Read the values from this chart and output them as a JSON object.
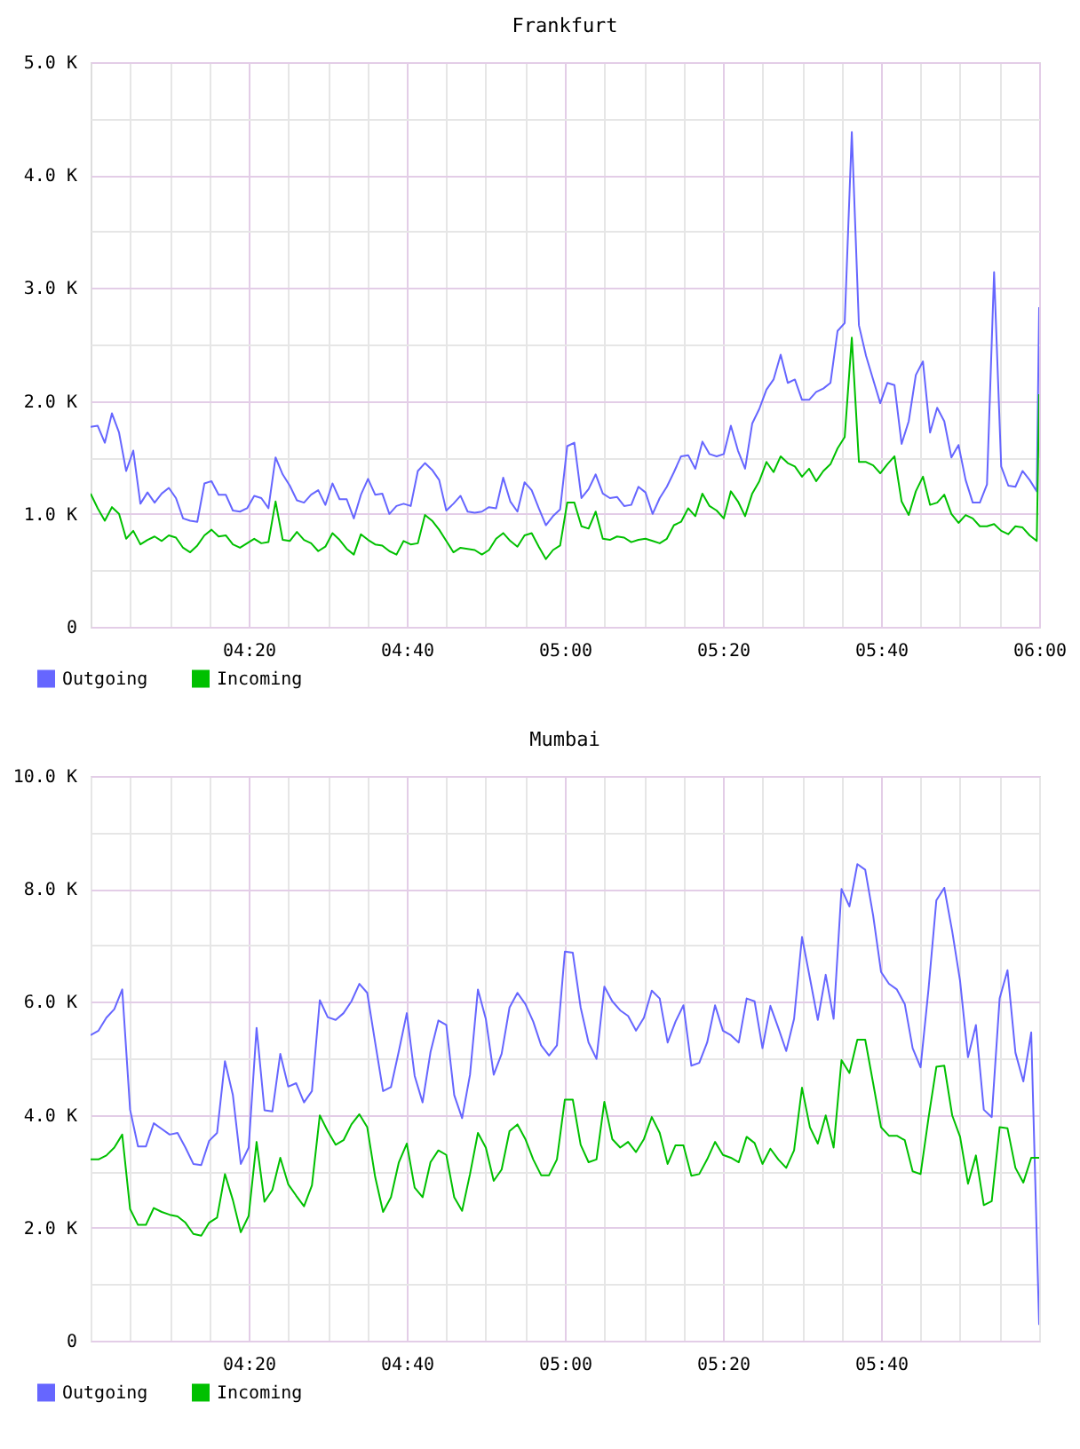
{
  "chart_data": [
    {
      "type": "line",
      "title": "Frankfurt",
      "x": [
        4.0,
        4.015,
        4.03,
        4.045,
        4.06,
        4.075,
        4.09,
        4.105,
        4.12,
        4.135,
        4.15,
        4.165,
        4.18,
        4.195,
        4.21,
        4.225,
        4.24,
        4.255,
        4.27,
        4.285,
        4.3,
        4.315,
        4.33,
        4.345,
        4.36,
        4.375,
        4.39,
        4.405,
        4.42,
        4.435,
        4.45,
        4.465,
        4.48,
        4.495,
        4.51,
        4.525,
        4.54,
        4.555,
        4.57,
        4.585,
        4.6,
        4.615,
        4.63,
        4.645,
        4.66,
        4.675,
        4.69,
        4.705,
        4.72,
        4.735,
        4.75,
        4.765,
        4.78,
        4.795,
        4.81,
        4.825,
        4.84,
        4.855,
        4.87,
        4.885,
        4.9,
        4.915,
        4.93,
        4.945,
        4.96,
        4.975,
        4.99,
        5.005,
        5.02,
        5.035,
        5.05,
        5.065,
        5.08,
        5.095,
        5.11,
        5.125,
        5.14,
        5.155,
        5.17,
        5.185,
        5.2,
        5.215,
        5.23,
        5.245,
        5.26,
        5.275,
        5.29,
        5.305,
        5.32,
        5.335,
        5.35,
        5.365,
        5.38,
        5.395,
        5.41,
        5.425,
        5.44,
        5.455,
        5.47,
        5.485,
        5.5,
        5.515,
        5.53,
        5.545,
        5.56,
        5.575,
        5.59,
        5.605,
        5.62,
        5.635,
        5.65,
        5.665,
        5.68,
        5.695,
        5.71,
        5.725,
        5.74,
        5.755,
        5.77,
        5.785,
        5.8,
        5.815,
        5.83,
        5.845,
        5.86,
        5.875,
        5.89,
        5.905,
        5.92,
        5.935,
        5.95,
        5.965,
        5.98,
        5.995,
        6.0
      ],
      "series": [
        {
          "name": "Outgoing",
          "color": "#6666ff",
          "values": [
            1770,
            1780,
            1630,
            1890,
            1720,
            1380,
            1560,
            1090,
            1190,
            1100,
            1180,
            1230,
            1140,
            960,
            940,
            930,
            1270,
            1290,
            1170,
            1170,
            1030,
            1020,
            1050,
            1160,
            1140,
            1050,
            1500,
            1350,
            1250,
            1120,
            1100,
            1170,
            1210,
            1080,
            1270,
            1130,
            1130,
            960,
            1170,
            1310,
            1170,
            1180,
            1000,
            1070,
            1090,
            1070,
            1380,
            1450,
            1390,
            1300,
            1030,
            1090,
            1160,
            1020,
            1010,
            1020,
            1060,
            1050,
            1320,
            1110,
            1020,
            1280,
            1210,
            1050,
            900,
            980,
            1040,
            1600,
            1630,
            1140,
            1220,
            1350,
            1180,
            1140,
            1150,
            1070,
            1080,
            1240,
            1190,
            1000,
            1140,
            1240,
            1370,
            1510,
            1520,
            1400,
            1640,
            1530,
            1510,
            1530,
            1780,
            1560,
            1400,
            1800,
            1930,
            2100,
            2190,
            2410,
            2160,
            2190,
            2010,
            2010,
            2080,
            2110,
            2160,
            2620,
            2690,
            4380,
            2670,
            2400,
            2190,
            1980,
            2160,
            2140,
            1620,
            1820,
            2230,
            2350,
            1720,
            1940,
            1820,
            1500,
            1610,
            1300,
            1100,
            1100,
            1260,
            3140,
            1420,
            1250,
            1240,
            1380,
            1300,
            1200,
            2830
          ]
        },
        {
          "name": "Incoming",
          "color": "#00c000",
          "values": [
            1180,
            1050,
            940,
            1060,
            1000,
            780,
            850,
            730,
            770,
            800,
            760,
            810,
            790,
            700,
            660,
            720,
            810,
            860,
            800,
            810,
            730,
            700,
            740,
            780,
            740,
            750,
            1110,
            770,
            760,
            840,
            770,
            740,
            670,
            710,
            830,
            770,
            690,
            640,
            820,
            770,
            730,
            720,
            670,
            640,
            760,
            730,
            740,
            990,
            940,
            860,
            760,
            660,
            700,
            690,
            680,
            640,
            680,
            780,
            830,
            760,
            710,
            810,
            830,
            710,
            600,
            680,
            720,
            1100,
            1100,
            890,
            870,
            1020,
            780,
            770,
            800,
            790,
            750,
            770,
            780,
            760,
            740,
            780,
            900,
            930,
            1050,
            980,
            1180,
            1070,
            1030,
            960,
            1200,
            1110,
            980,
            1180,
            1290,
            1460,
            1370,
            1510,
            1450,
            1420,
            1330,
            1400,
            1290,
            1380,
            1440,
            1580,
            1680,
            2560,
            1460,
            1460,
            1430,
            1360,
            1440,
            1510,
            1110,
            990,
            1200,
            1330,
            1080,
            1100,
            1170,
            1000,
            920,
            990,
            960,
            890,
            890,
            910,
            850,
            820,
            890,
            880,
            810,
            760,
            2060
          ]
        }
      ],
      "xlim": [
        4.0,
        6.0
      ],
      "xticks": [
        {
          "value": 4.0833,
          "label": null
        },
        {
          "value": 4.1667,
          "label": null
        },
        {
          "value": 4.25,
          "label": null
        },
        {
          "value": 4.3333,
          "label": "04:20"
        },
        {
          "value": 4.4167,
          "label": null
        },
        {
          "value": 4.5,
          "label": null
        },
        {
          "value": 4.5833,
          "label": null
        },
        {
          "value": 4.6667,
          "label": "04:40"
        },
        {
          "value": 4.75,
          "label": null
        },
        {
          "value": 4.8333,
          "label": null
        },
        {
          "value": 4.9167,
          "label": null
        },
        {
          "value": 5.0,
          "label": "05:00"
        },
        {
          "value": 5.0833,
          "label": null
        },
        {
          "value": 5.1667,
          "label": null
        },
        {
          "value": 5.25,
          "label": null
        },
        {
          "value": 5.3333,
          "label": "05:20"
        },
        {
          "value": 5.4167,
          "label": null
        },
        {
          "value": 5.5,
          "label": null
        },
        {
          "value": 5.5833,
          "label": null
        },
        {
          "value": 5.6667,
          "label": "05:40"
        },
        {
          "value": 5.75,
          "label": null
        },
        {
          "value": 5.8333,
          "label": null
        },
        {
          "value": 5.9167,
          "label": null
        },
        {
          "value": 6.0,
          "label": "06:00"
        }
      ],
      "ylim": [
        0,
        5000
      ],
      "yticks": [
        0,
        {
          "value": 500,
          "label": null
        },
        {
          "value": 1000,
          "label": "1.0 K"
        },
        {
          "value": 1500,
          "label": null
        },
        {
          "value": 2000,
          "label": "2.0 K"
        },
        {
          "value": 2500,
          "label": null
        },
        {
          "value": 3000,
          "label": "3.0 K"
        },
        {
          "value": 3500,
          "label": null
        },
        {
          "value": 4000,
          "label": "4.0 K"
        },
        {
          "value": 4500,
          "label": null
        },
        {
          "value": 5000,
          "label": "5.0 K"
        }
      ],
      "grid": true,
      "legend": "bottom left"
    },
    {
      "type": "line",
      "title": "Mumbai",
      "x": [
        4.0,
        4.0167,
        4.0333,
        4.05,
        4.0667,
        4.0833,
        4.1,
        4.1167,
        4.1333,
        4.15,
        4.1667,
        4.1833,
        4.2,
        4.2167,
        4.2333,
        4.25,
        4.2667,
        4.2833,
        4.3,
        4.3167,
        4.3333,
        4.35,
        4.3667,
        4.3833,
        4.4,
        4.4167,
        4.4333,
        4.45,
        4.4667,
        4.4833,
        4.5,
        4.5167,
        4.5333,
        4.55,
        4.5667,
        4.5833,
        4.6,
        4.6167,
        4.6333,
        4.65,
        4.6667,
        4.6833,
        4.7,
        4.7167,
        4.7333,
        4.75,
        4.7667,
        4.7833,
        4.8,
        4.8167,
        4.8333,
        4.85,
        4.8667,
        4.8833,
        4.9,
        4.9167,
        4.9333,
        4.95,
        4.9667,
        4.9833,
        5.0,
        5.0167,
        5.0333,
        5.05,
        5.0667,
        5.0833,
        5.1,
        5.1167,
        5.1333,
        5.15,
        5.1667,
        5.1833,
        5.2,
        5.2167,
        5.2333,
        5.25,
        5.2667,
        5.2833,
        5.3,
        5.3167,
        5.3333,
        5.35,
        5.3667,
        5.3833,
        5.4,
        5.4167,
        5.4333,
        5.45,
        5.4667,
        5.4833,
        5.5,
        5.5167,
        5.5333,
        5.55,
        5.5667,
        5.5833,
        5.6,
        5.6167,
        5.6333,
        5.65,
        5.6667,
        5.6833,
        5.7,
        5.7167,
        5.7333,
        5.75,
        5.7667,
        5.7833,
        5.8,
        5.8167,
        5.8333,
        5.85,
        5.8667,
        5.8833,
        5.9,
        5.9167,
        5.9333,
        5.95,
        5.9667,
        5.9833,
        6.0
      ],
      "series": [
        {
          "name": "Outgoing",
          "color": "#6666ff",
          "values": [
            5410,
            5490,
            5720,
            5870,
            6220,
            4090,
            3440,
            3440,
            3850,
            3750,
            3650,
            3680,
            3420,
            3130,
            3110,
            3540,
            3680,
            4950,
            4350,
            3130,
            3420,
            5540,
            4080,
            4060,
            5080,
            4500,
            4560,
            4220,
            4420,
            6030,
            5730,
            5680,
            5800,
            6010,
            6320,
            6160,
            5280,
            4420,
            4490,
            5130,
            5800,
            4690,
            4220,
            5110,
            5670,
            5590,
            4350,
            3940,
            4710,
            6220,
            5700,
            4710,
            5080,
            5900,
            6160,
            5960,
            5650,
            5230,
            5050,
            5230,
            6890,
            6870,
            5900,
            5280,
            4990,
            6270,
            6010,
            5850,
            5750,
            5490,
            5720,
            6200,
            6060,
            5280,
            5650,
            5940,
            4870,
            4920,
            5280,
            5940,
            5490,
            5410,
            5280,
            6060,
            6010,
            5180,
            5930,
            5540,
            5130,
            5700,
            7150,
            6420,
            5680,
            6480,
            5700,
            8000,
            7690,
            8440,
            8340,
            7530,
            6530,
            6320,
            6220,
            5960,
            5180,
            4840,
            6220,
            7800,
            8020,
            7250,
            6370,
            5020,
            5590,
            4090,
            3960,
            6060,
            6560,
            5100,
            4590,
            5460,
            280
          ]
        },
        {
          "name": "Incoming",
          "color": "#00c000",
          "values": [
            3210,
            3210,
            3280,
            3420,
            3650,
            2330,
            2050,
            2050,
            2350,
            2280,
            2230,
            2200,
            2090,
            1890,
            1860,
            2090,
            2180,
            2950,
            2490,
            1920,
            2210,
            3520,
            2460,
            2670,
            3240,
            2770,
            2570,
            2380,
            2750,
            3990,
            3710,
            3470,
            3550,
            3830,
            4010,
            3780,
            2900,
            2280,
            2540,
            3160,
            3490,
            2710,
            2540,
            3160,
            3370,
            3290,
            2540,
            2300,
            2950,
            3680,
            3420,
            2830,
            3030,
            3710,
            3830,
            3570,
            3210,
            2930,
            2930,
            3210,
            4270,
            4270,
            3470,
            3160,
            3210,
            4230,
            3570,
            3420,
            3520,
            3340,
            3570,
            3960,
            3680,
            3130,
            3460,
            3460,
            2920,
            2950,
            3210,
            3520,
            3290,
            3240,
            3160,
            3610,
            3500,
            3130,
            3400,
            3210,
            3060,
            3370,
            4480,
            3780,
            3490,
            3990,
            3420,
            4970,
            4740,
            5330,
            5330,
            4560,
            3780,
            3630,
            3630,
            3550,
            3000,
            2950,
            3940,
            4850,
            4870,
            3990,
            3610,
            2780,
            3280,
            2400,
            2470,
            3780,
            3760,
            3060,
            2800,
            3240,
            3240
          ]
        }
      ],
      "xlim": [
        4.0,
        6.0
      ],
      "xticks": [
        {
          "value": 4.0,
          "label": null
        },
        {
          "value": 4.0833,
          "label": null
        },
        {
          "value": 4.1667,
          "label": null
        },
        {
          "value": 4.25,
          "label": null
        },
        {
          "value": 4.3333,
          "label": "04:20"
        },
        {
          "value": 4.4167,
          "label": null
        },
        {
          "value": 4.5,
          "label": null
        },
        {
          "value": 4.5833,
          "label": null
        },
        {
          "value": 4.6667,
          "label": "04:40"
        },
        {
          "value": 4.75,
          "label": null
        },
        {
          "value": 4.8333,
          "label": null
        },
        {
          "value": 4.9167,
          "label": null
        },
        {
          "value": 5.0,
          "label": "05:00"
        },
        {
          "value": 5.0833,
          "label": null
        },
        {
          "value": 5.1667,
          "label": null
        },
        {
          "value": 5.25,
          "label": null
        },
        {
          "value": 5.3333,
          "label": "05:20"
        },
        {
          "value": 5.4167,
          "label": null
        },
        {
          "value": 5.5,
          "label": null
        },
        {
          "value": 5.5833,
          "label": null
        },
        {
          "value": 5.6667,
          "label": "05:40"
        },
        {
          "value": 5.75,
          "label": null
        },
        {
          "value": 5.8333,
          "label": null
        },
        {
          "value": 5.9167,
          "label": null
        },
        {
          "value": 6.0,
          "label": null
        }
      ],
      "ylim": [
        0,
        10000
      ],
      "yticks": [
        0,
        {
          "value": 1000,
          "label": null
        },
        {
          "value": 2000,
          "label": "2.0 K"
        },
        {
          "value": 3000,
          "label": null
        },
        {
          "value": 4000,
          "label": "4.0 K"
        },
        {
          "value": 5000,
          "label": null
        },
        {
          "value": 6000,
          "label": "6.0 K"
        },
        {
          "value": 7000,
          "label": null
        },
        {
          "value": 8000,
          "label": "8.0 K"
        },
        {
          "value": 9000,
          "label": null
        },
        {
          "value": 10000,
          "label": "10.0 K"
        }
      ],
      "grid": true,
      "legend": "bottom left"
    }
  ]
}
